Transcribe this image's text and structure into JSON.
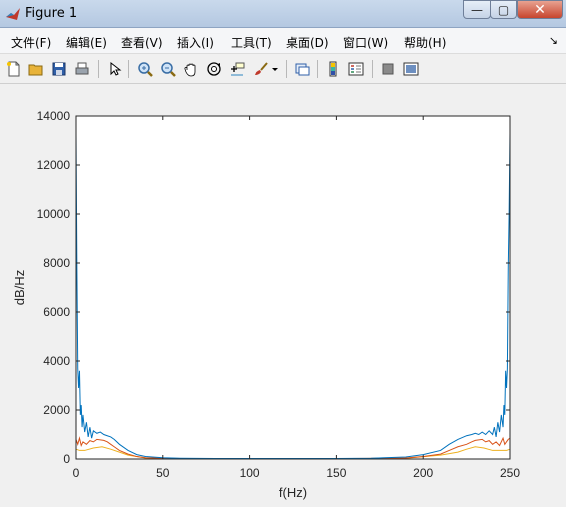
{
  "window": {
    "title": "Figure 1",
    "min_glyph": "—",
    "max_glyph": "▢",
    "close_glyph": "✕"
  },
  "menubar": {
    "items": [
      "文件(F)",
      "编辑(E)",
      "查看(V)",
      "插入(I)",
      "工具(T)",
      "桌面(D)",
      "窗口(W)",
      "帮助(H)"
    ],
    "overflow_glyph": "↘"
  },
  "toolbar": {
    "icons": [
      "new-figure-icon",
      "open-file-icon",
      "save-icon",
      "print-icon",
      "edit-plot-icon",
      "zoom-in-icon",
      "zoom-out-icon",
      "pan-icon",
      "rotate-3d-icon",
      "data-cursor-icon",
      "brush-icon",
      "brush-dropdown-icon",
      "link-plot-icon",
      "insert-colorbar-icon",
      "insert-legend-icon",
      "hide-plot-tools-icon",
      "show-plot-tools-icon"
    ]
  },
  "colors": {
    "series1": "#0072bd",
    "series2": "#d95319",
    "series3": "#edb120"
  },
  "chart_data": {
    "type": "line",
    "xlabel": "f(Hz)",
    "ylabel": "dB/Hz",
    "xlim": [
      0,
      250
    ],
    "ylim": [
      0,
      14000
    ],
    "xticks": [
      0,
      50,
      100,
      150,
      200,
      250
    ],
    "yticks": [
      0,
      2000,
      4000,
      6000,
      8000,
      10000,
      12000,
      14000
    ],
    "xtick_labels": [
      "0",
      "50",
      "100",
      "150",
      "200",
      "250"
    ],
    "ytick_labels": [
      "0",
      "2000",
      "4000",
      "6000",
      "8000",
      "10000",
      "12000",
      "14000"
    ],
    "grid": false,
    "series": [
      {
        "color": "#0072bd",
        "x": [
          0,
          0.5,
          1,
          1.5,
          2,
          2.5,
          3,
          3.5,
          4,
          5,
          6,
          7,
          8,
          9,
          10,
          12,
          14,
          16,
          18,
          20,
          22,
          25,
          30,
          35,
          40,
          50,
          60,
          80,
          100,
          125,
          150,
          170,
          190,
          200,
          210,
          215,
          220,
          225,
          228,
          230,
          232,
          234,
          236,
          238,
          240,
          241,
          242,
          243,
          244,
          245,
          246,
          246.5,
          247,
          247.5,
          248,
          248.5,
          249,
          249.5,
          250
        ],
        "y": [
          13300,
          7800,
          3700,
          2900,
          3600,
          1800,
          2200,
          1300,
          1800,
          1100,
          1500,
          900,
          1300,
          850,
          1150,
          1050,
          1100,
          1000,
          950,
          900,
          800,
          600,
          350,
          180,
          100,
          50,
          30,
          20,
          20,
          20,
          20,
          30,
          80,
          180,
          350,
          600,
          800,
          950,
          1000,
          1050,
          1000,
          1100,
          1000,
          1150,
          1000,
          1300,
          900,
          1500,
          1100,
          1800,
          1300,
          2200,
          1800,
          3600,
          2900,
          3700,
          7800,
          10000,
          13300
        ]
      },
      {
        "color": "#d95319",
        "x": [
          0,
          1,
          2,
          3,
          4,
          6,
          8,
          10,
          12,
          14,
          16,
          18,
          20,
          22,
          25,
          30,
          35,
          40,
          50,
          60,
          100,
          150,
          190,
          200,
          210,
          215,
          220,
          225,
          228,
          230,
          232,
          234,
          236,
          238,
          240,
          242,
          244,
          246,
          247,
          248,
          249,
          250
        ],
        "y": [
          800,
          600,
          850,
          550,
          700,
          600,
          750,
          700,
          800,
          780,
          760,
          700,
          600,
          500,
          350,
          200,
          100,
          50,
          30,
          20,
          15,
          15,
          40,
          100,
          200,
          350,
          500,
          600,
          700,
          760,
          780,
          800,
          700,
          750,
          600,
          700,
          550,
          850,
          600,
          700,
          800,
          850
        ]
      },
      {
        "color": "#edb120",
        "x": [
          0,
          2,
          5,
          10,
          15,
          20,
          25,
          30,
          40,
          60,
          100,
          150,
          190,
          210,
          220,
          225,
          230,
          235,
          240,
          245,
          248,
          250
        ],
        "y": [
          400,
          350,
          350,
          450,
          500,
          400,
          280,
          160,
          40,
          15,
          10,
          10,
          30,
          160,
          280,
          400,
          500,
          450,
          350,
          350,
          350,
          400
        ]
      }
    ]
  }
}
